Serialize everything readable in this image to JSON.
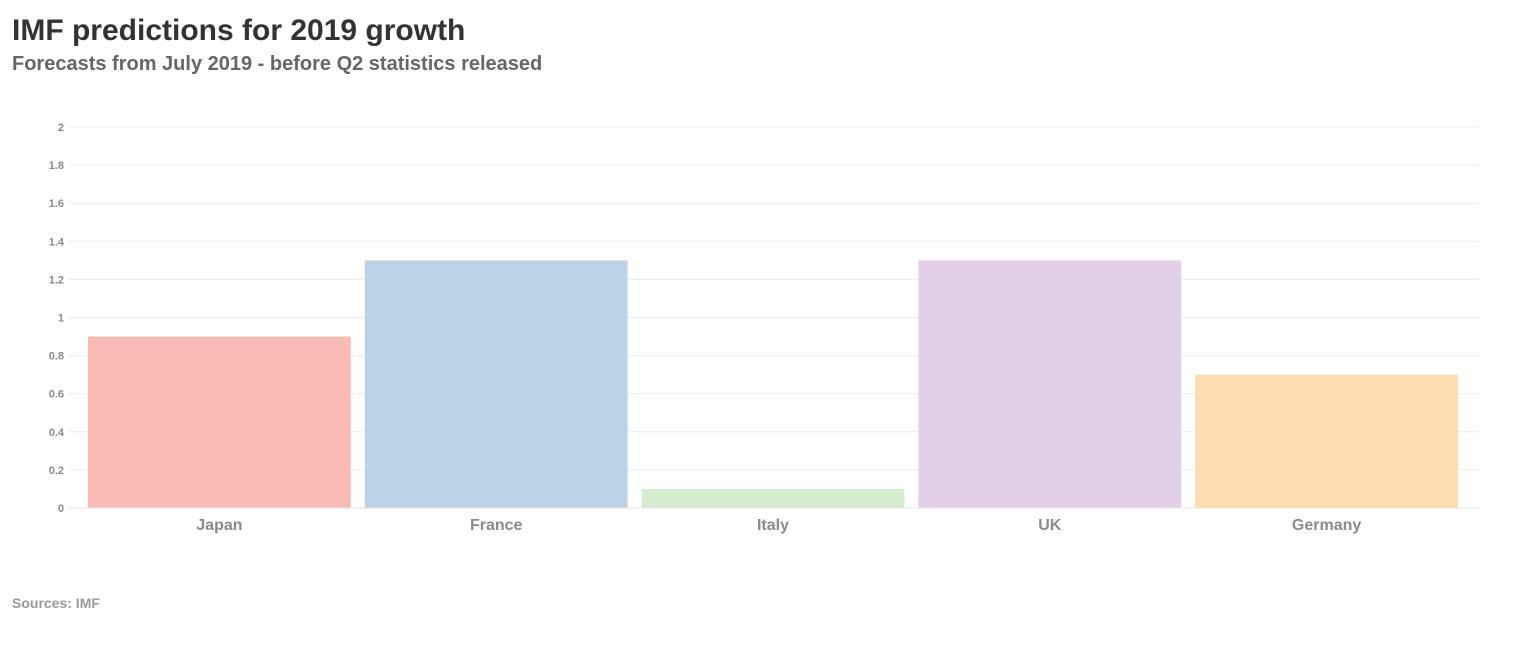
{
  "header": {
    "title": "IMF predictions for 2019 growth",
    "subtitle": "Forecasts from July 2019 - before Q2 statistics released"
  },
  "footer": {
    "source": "Sources: IMF"
  },
  "chart_data": {
    "type": "bar",
    "categories": [
      "Japan",
      "France",
      "Italy",
      "UK",
      "Germany"
    ],
    "values": [
      0.9,
      1.3,
      0.1,
      1.3,
      0.7
    ],
    "colors": [
      "#f9bbb6",
      "#bcd2e6",
      "#d6ecce",
      "#e2d0e6",
      "#fcdcb0"
    ],
    "yticks": [
      "0",
      "0.2",
      "0.4",
      "0.6",
      "0.8",
      "1",
      "1.2",
      "1.4",
      "1.6",
      "1.8",
      "2"
    ],
    "ylim": [
      0,
      2
    ],
    "grid": true,
    "legend": "none"
  }
}
